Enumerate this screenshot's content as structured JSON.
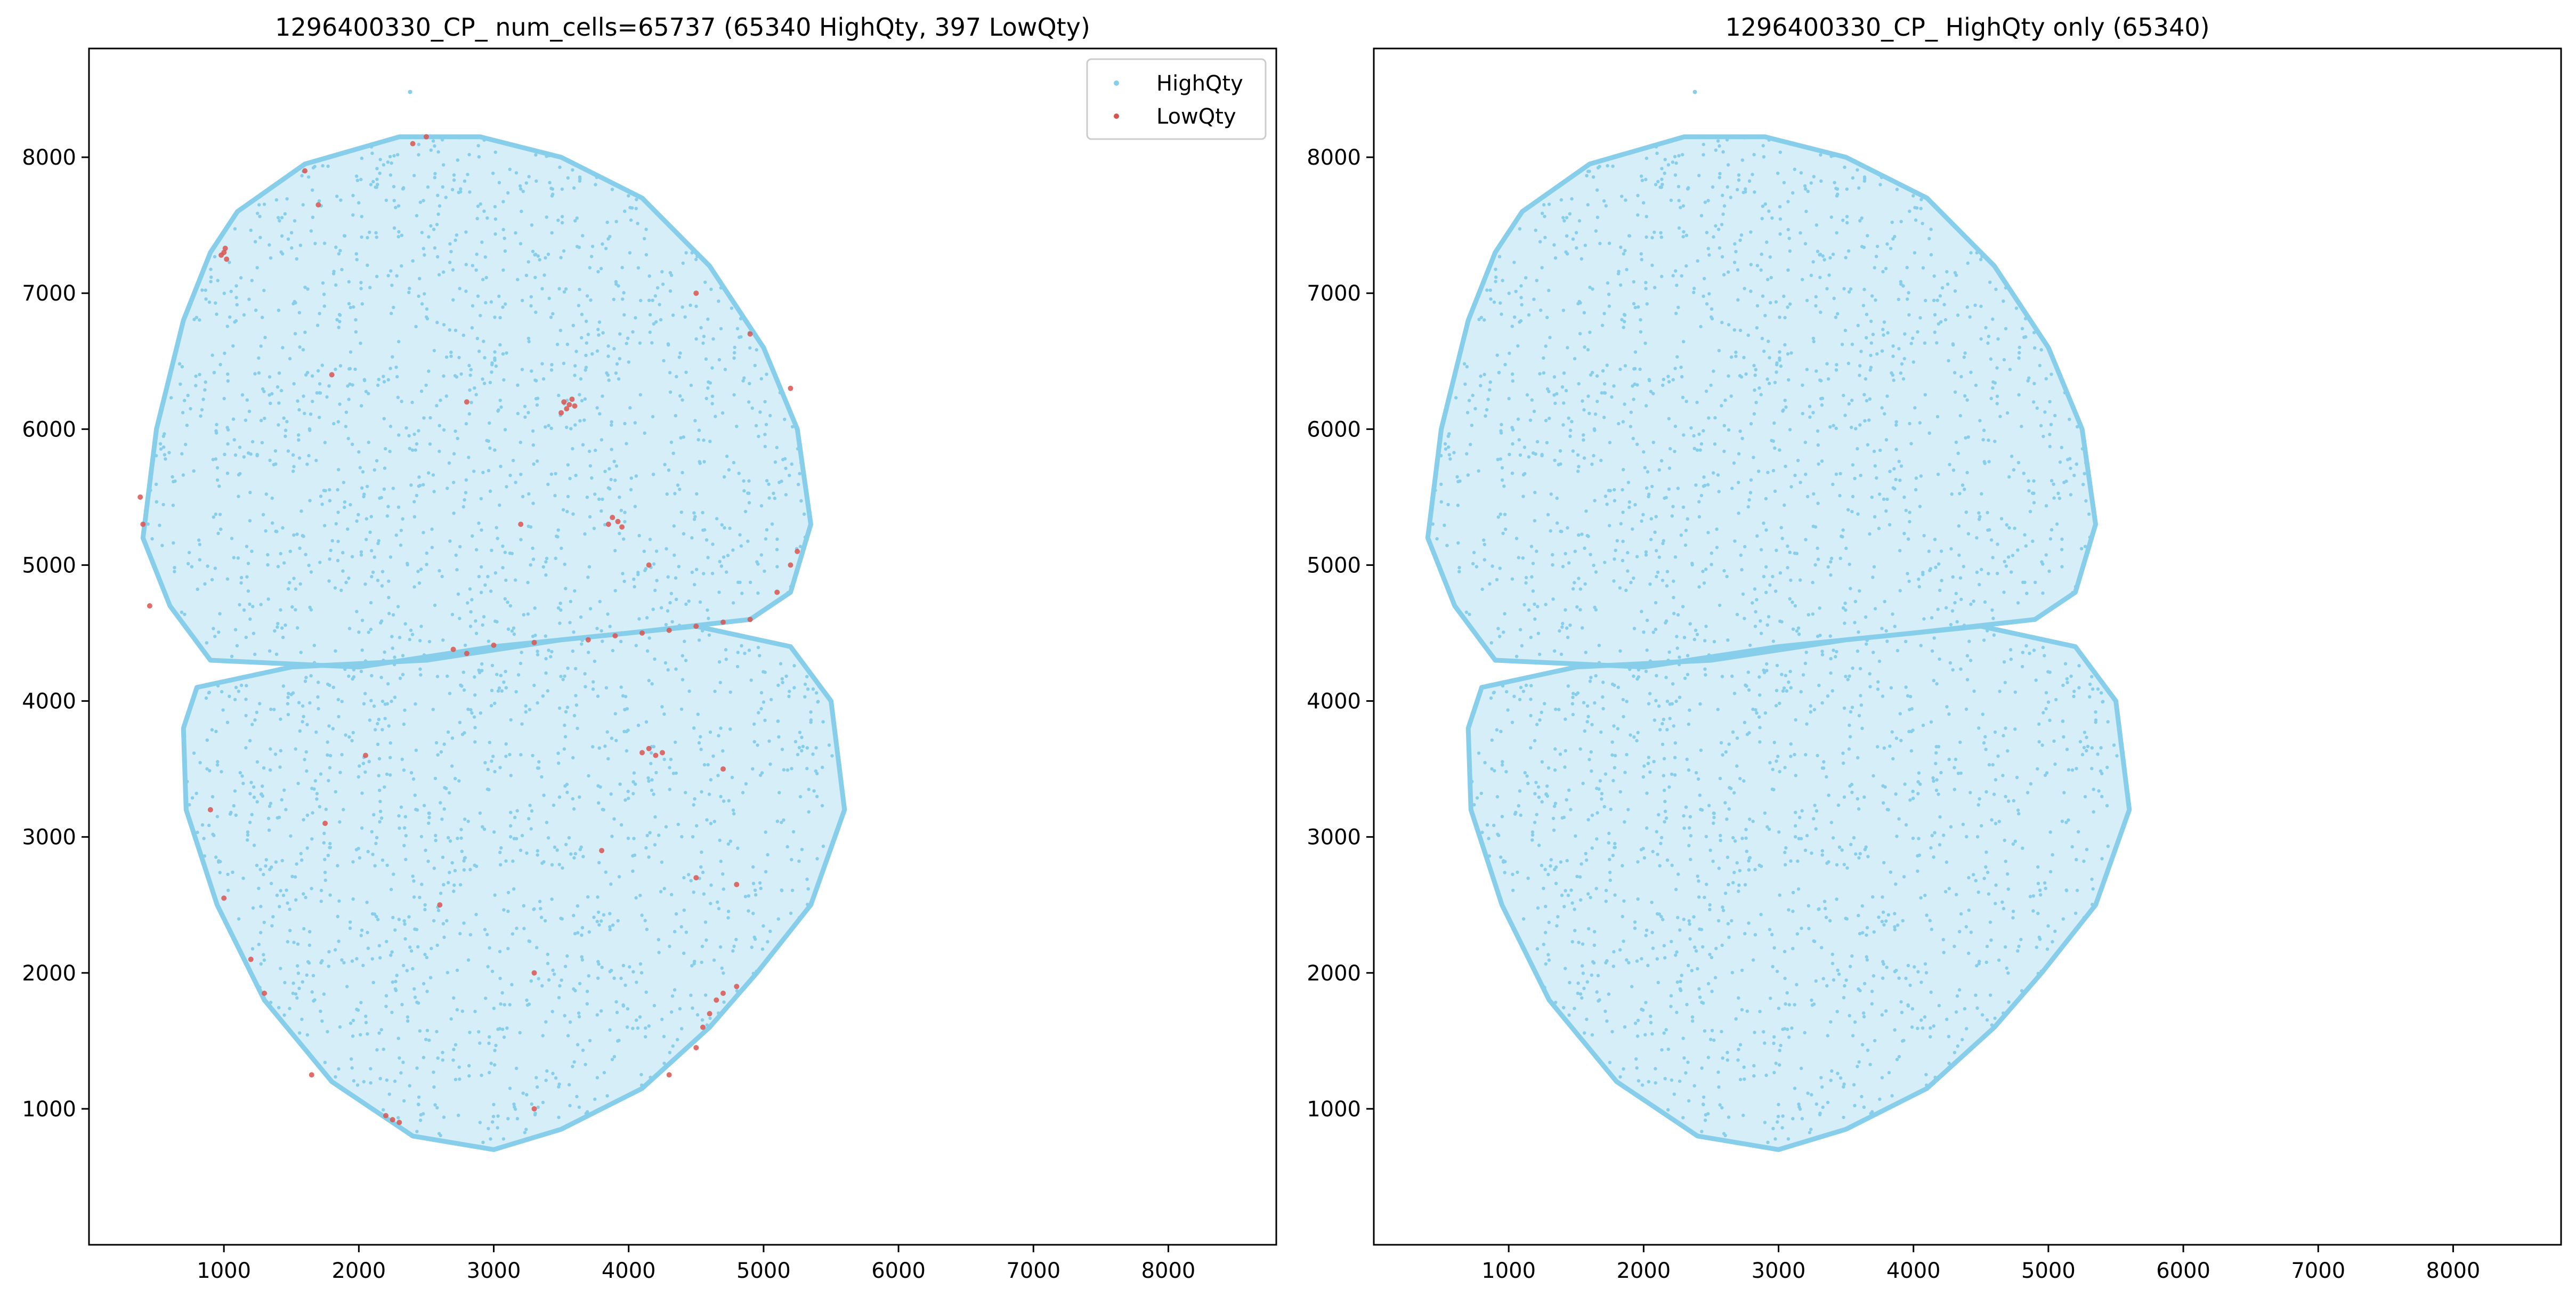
{
  "chart_data": [
    {
      "type": "scatter",
      "title": "1296400330_CP_ num_cells=65737 (65340 HighQty, 397 LowQty)",
      "xlabel": "",
      "ylabel": "",
      "xlim": [
        0,
        8800
      ],
      "ylim": [
        0,
        8800
      ],
      "xticks": [
        1000,
        2000,
        3000,
        4000,
        5000,
        6000,
        7000,
        8000
      ],
      "yticks": [
        1000,
        2000,
        3000,
        4000,
        5000,
        6000,
        7000,
        8000
      ],
      "grid": false,
      "legend": {
        "position": "top-right",
        "entries": [
          "HighQty",
          "LowQty"
        ]
      },
      "series": [
        {
          "name": "HighQty",
          "color": "#87ceeb",
          "count": 65340,
          "shape": "two-lobed tissue section",
          "upper_lobe_outline": [
            [
              1100,
              7600
            ],
            [
              1600,
              7950
            ],
            [
              2300,
              8150
            ],
            [
              2900,
              8150
            ],
            [
              3500,
              8000
            ],
            [
              4100,
              7700
            ],
            [
              4600,
              7200
            ],
            [
              5000,
              6600
            ],
            [
              5250,
              6000
            ],
            [
              5350,
              5300
            ],
            [
              5200,
              4800
            ],
            [
              4900,
              4600
            ],
            [
              4000,
              4500
            ],
            [
              3000,
              4400
            ],
            [
              2000,
              4250
            ],
            [
              900,
              4300
            ],
            [
              600,
              4700
            ],
            [
              400,
              5200
            ],
            [
              500,
              6000
            ],
            [
              700,
              6800
            ],
            [
              900,
              7300
            ]
          ],
          "lower_lobe_outline": [
            [
              800,
              4100
            ],
            [
              1500,
              4250
            ],
            [
              2500,
              4300
            ],
            [
              3500,
              4450
            ],
            [
              4500,
              4550
            ],
            [
              5200,
              4400
            ],
            [
              5500,
              4000
            ],
            [
              5600,
              3200
            ],
            [
              5350,
              2500
            ],
            [
              4950,
              2000
            ],
            [
              4600,
              1600
            ],
            [
              4100,
              1150
            ],
            [
              3500,
              850
            ],
            [
              3000,
              700
            ],
            [
              2400,
              800
            ],
            [
              1800,
              1200
            ],
            [
              1300,
              1800
            ],
            [
              950,
              2500
            ],
            [
              720,
              3200
            ],
            [
              700,
              3800
            ]
          ]
        },
        {
          "name": "LowQty",
          "color": "#d9534f",
          "count": 397,
          "points": [
            [
              1000,
              7300
            ],
            [
              980,
              7280
            ],
            [
              1010,
              7330
            ],
            [
              1020,
              7250
            ],
            [
              1600,
              7900
            ],
            [
              1700,
              7650
            ],
            [
              2500,
              8150
            ],
            [
              2400,
              8100
            ],
            [
              3520,
              6200
            ],
            [
              3540,
              6150
            ],
            [
              3560,
              6180
            ],
            [
              3580,
              6220
            ],
            [
              3500,
              6120
            ],
            [
              3600,
              6170
            ],
            [
              3880,
              5350
            ],
            [
              3920,
              5320
            ],
            [
              3950,
              5280
            ],
            [
              3850,
              5300
            ],
            [
              3700,
              4450
            ],
            [
              3900,
              4480
            ],
            [
              4100,
              4500
            ],
            [
              4300,
              4520
            ],
            [
              4500,
              4550
            ],
            [
              4700,
              4580
            ],
            [
              4900,
              4600
            ],
            [
              5100,
              4800
            ],
            [
              5200,
              5000
            ],
            [
              5250,
              5100
            ],
            [
              2700,
              4380
            ],
            [
              3000,
              4410
            ],
            [
              3300,
              4430
            ],
            [
              4150,
              3650
            ],
            [
              4200,
              3600
            ],
            [
              4250,
              3620
            ],
            [
              4100,
              3620
            ],
            [
              4600,
              1700
            ],
            [
              4650,
              1800
            ],
            [
              4700,
              1850
            ],
            [
              4800,
              1900
            ],
            [
              4550,
              1600
            ],
            [
              4500,
              1450
            ],
            [
              2200,
              950
            ],
            [
              2300,
              900
            ],
            [
              2250,
              920
            ],
            [
              1300,
              1850
            ],
            [
              1200,
              2100
            ],
            [
              1000,
              2550
            ],
            [
              380,
              5500
            ],
            [
              400,
              5300
            ],
            [
              450,
              4700
            ],
            [
              2800,
              4350
            ],
            [
              1800,
              6400
            ],
            [
              2800,
              6200
            ],
            [
              3200,
              5300
            ],
            [
              4500,
              7000
            ],
            [
              4900,
              6700
            ],
            [
              5200,
              6300
            ],
            [
              4500,
              2700
            ],
            [
              4800,
              2650
            ],
            [
              4700,
              3500
            ],
            [
              4300,
              1250
            ],
            [
              2600,
              2500
            ],
            [
              3300,
              2000
            ],
            [
              3800,
              2900
            ],
            [
              900,
              3200
            ],
            [
              2050,
              3600
            ],
            [
              1750,
              3100
            ],
            [
              1650,
              1250
            ],
            [
              4150,
              5000
            ],
            [
              3300,
              1000
            ]
          ]
        }
      ]
    },
    {
      "type": "scatter",
      "title": "1296400330_CP_ HighQty only (65340)",
      "xlabel": "",
      "ylabel": "",
      "xlim": [
        0,
        8800
      ],
      "ylim": [
        0,
        8800
      ],
      "xticks": [
        1000,
        2000,
        3000,
        4000,
        5000,
        6000,
        7000,
        8000
      ],
      "yticks": [
        1000,
        2000,
        3000,
        4000,
        5000,
        6000,
        7000,
        8000
      ],
      "grid": false,
      "series": [
        {
          "name": "HighQty",
          "color": "#87ceeb",
          "count": 65340,
          "shape": "two-lobed tissue section"
        }
      ]
    }
  ]
}
